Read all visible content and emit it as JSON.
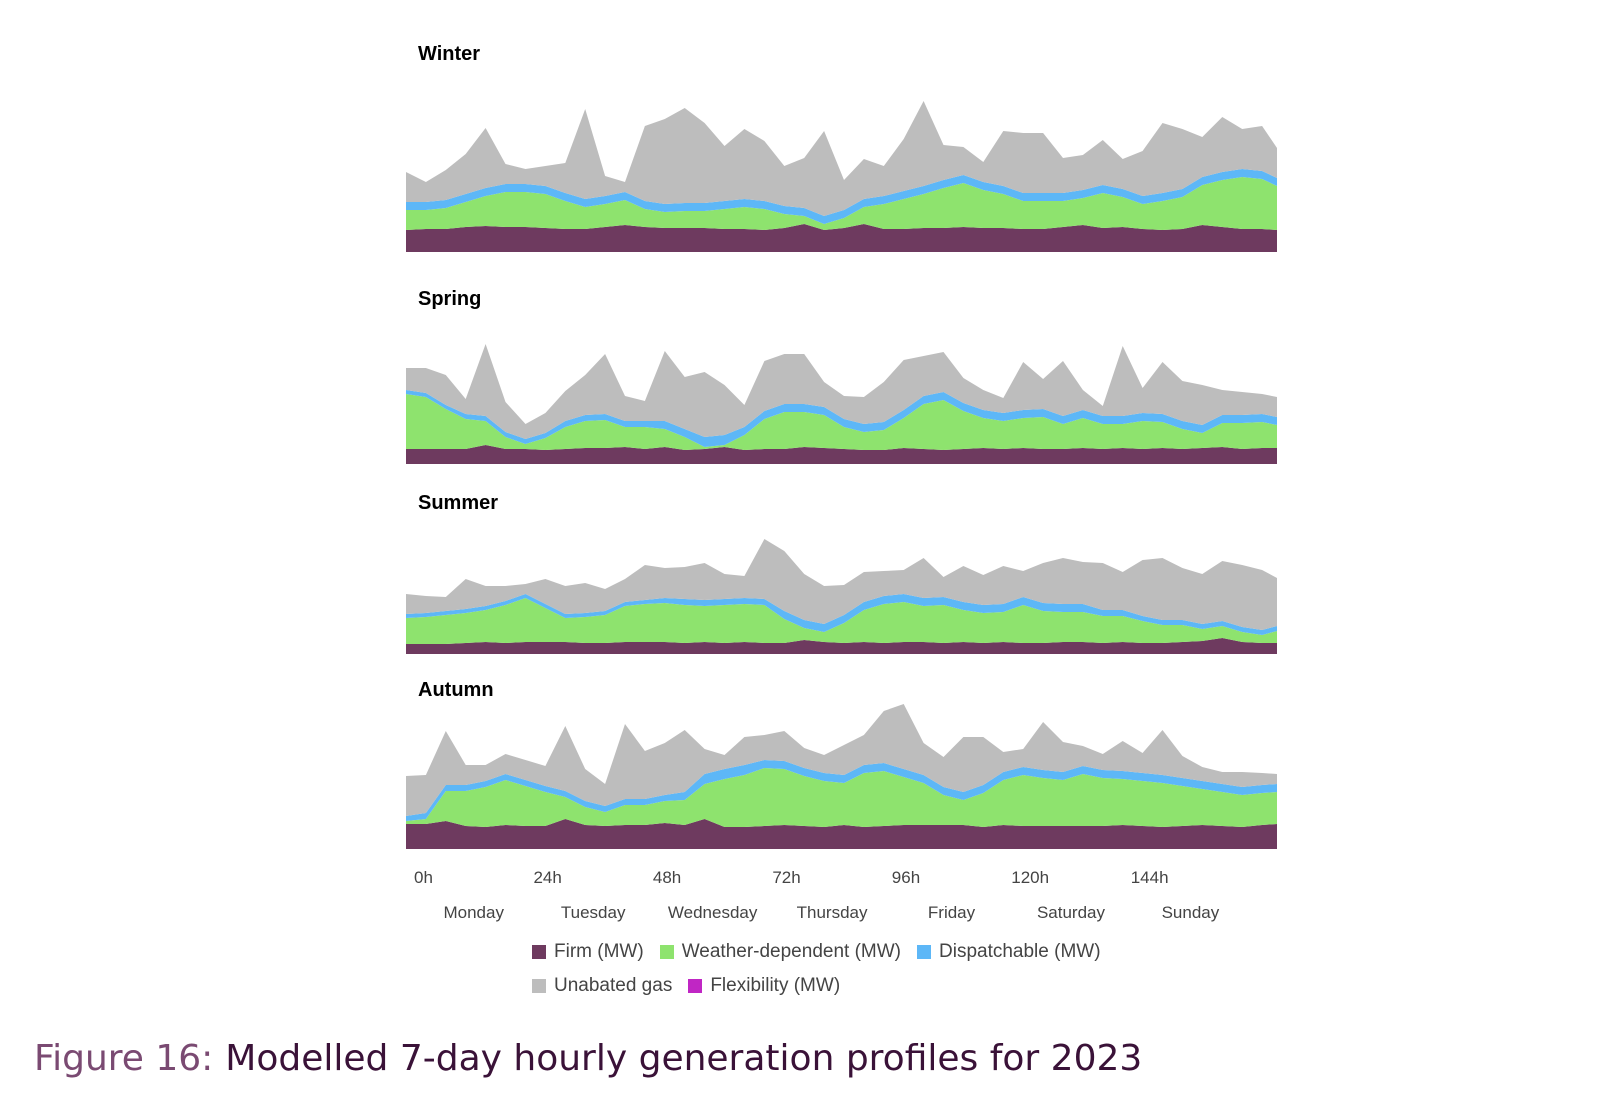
{
  "chart_data": {
    "type": "area",
    "stacked": true,
    "x_ticks": [
      "0h",
      "24h",
      "48h",
      "72h",
      "96h",
      "120h",
      "144h"
    ],
    "x_tick_hours": [
      0,
      24,
      48,
      72,
      96,
      120,
      144
    ],
    "x_range": [
      0,
      175
    ],
    "days": [
      "Monday",
      "Tuesday",
      "Wednesday",
      "Thursday",
      "Friday",
      "Saturday",
      "Sunday"
    ],
    "legend": [
      {
        "name": "Firm (MW)",
        "color": "#6e3a5f"
      },
      {
        "name": "Weather-dependent (MW)",
        "color": "#8ee36e"
      },
      {
        "name": "Dispatchable (MW)",
        "color": "#5db7f7"
      },
      {
        "name": "Unabated gas",
        "color": "#bdbdbd"
      },
      {
        "name": "Flexibility (MW)",
        "color": "#c026c4"
      }
    ],
    "series_order": [
      "Firm (MW)",
      "Weather-dependent (MW)",
      "Dispatchable (MW)",
      "Unabated gas"
    ],
    "panels": [
      {
        "title": "Winter",
        "hours": [
          0,
          4,
          8,
          12,
          16,
          20,
          24,
          28,
          32,
          36,
          40,
          44,
          48,
          52,
          56,
          60,
          64,
          68,
          72,
          76,
          80,
          84,
          88,
          92,
          96,
          100,
          104,
          108,
          112,
          116,
          120,
          124,
          128,
          132,
          136,
          140,
          144,
          148,
          152,
          156,
          160,
          164,
          168,
          172,
          175
        ],
        "firm": [
          22,
          23,
          23,
          25,
          26,
          25,
          25,
          24,
          23,
          23,
          25,
          27,
          25,
          24,
          24,
          24,
          23,
          23,
          22,
          24,
          28,
          22,
          24,
          28,
          23,
          23,
          24,
          24,
          25,
          24,
          24,
          23,
          23,
          25,
          27,
          24,
          25,
          23,
          22,
          23,
          27,
          25,
          23,
          23,
          22
        ],
        "weather": [
          20,
          19,
          21,
          25,
          30,
          35,
          35,
          34,
          28,
          22,
          23,
          25,
          18,
          16,
          17,
          17,
          20,
          22,
          21,
          14,
          8,
          6,
          10,
          17,
          25,
          30,
          34,
          40,
          44,
          38,
          34,
          28,
          28,
          26,
          27,
          35,
          30,
          25,
          29,
          32,
          40,
          47,
          52,
          50,
          44
        ],
        "dispatchable": [
          8,
          8,
          8,
          8,
          8,
          8,
          8,
          8,
          8,
          8,
          8,
          8,
          8,
          8,
          8,
          8,
          8,
          8,
          8,
          8,
          8,
          8,
          8,
          8,
          8,
          8,
          8,
          8,
          8,
          8,
          8,
          8,
          8,
          8,
          8,
          8,
          8,
          8,
          8,
          8,
          8,
          8,
          8,
          8,
          8
        ],
        "gas": [
          30,
          20,
          30,
          40,
          60,
          20,
          15,
          20,
          30,
          90,
          20,
          10,
          75,
          85,
          95,
          80,
          55,
          70,
          60,
          40,
          50,
          85,
          30,
          40,
          30,
          52,
          85,
          35,
          28,
          20,
          55,
          60,
          60,
          35,
          35,
          45,
          30,
          45,
          70,
          60,
          40,
          55,
          40,
          45,
          30
        ]
      },
      {
        "title": "Spring",
        "hours": [
          0,
          4,
          8,
          12,
          16,
          20,
          24,
          28,
          32,
          36,
          40,
          44,
          48,
          52,
          56,
          60,
          64,
          68,
          72,
          76,
          80,
          84,
          88,
          92,
          96,
          100,
          104,
          108,
          112,
          116,
          120,
          124,
          128,
          132,
          136,
          140,
          144,
          148,
          152,
          156,
          160,
          164,
          168,
          172,
          175
        ],
        "firm": [
          15,
          15,
          15,
          15,
          19,
          15,
          15,
          14,
          15,
          16,
          16,
          17,
          15,
          17,
          14,
          15,
          17,
          14,
          15,
          15,
          17,
          16,
          15,
          14,
          14,
          16,
          15,
          14,
          15,
          16,
          15,
          16,
          15,
          15,
          16,
          15,
          16,
          15,
          16,
          15,
          16,
          17,
          15,
          16,
          16
        ],
        "weather": [
          55,
          52,
          40,
          30,
          24,
          12,
          5,
          12,
          22,
          27,
          28,
          20,
          22,
          18,
          13,
          2,
          2,
          15,
          30,
          37,
          35,
          33,
          22,
          18,
          20,
          30,
          45,
          50,
          38,
          30,
          28,
          30,
          32,
          25,
          30,
          25,
          24,
          28,
          26,
          20,
          15,
          24,
          26,
          26,
          23
        ],
        "dispatchable": [
          4,
          4,
          4,
          5,
          5,
          5,
          5,
          5,
          6,
          6,
          6,
          6,
          6,
          8,
          8,
          10,
          10,
          8,
          8,
          8,
          8,
          8,
          8,
          8,
          8,
          8,
          8,
          8,
          8,
          8,
          8,
          8,
          8,
          8,
          8,
          8,
          8,
          8,
          8,
          8,
          8,
          8,
          8,
          8,
          8
        ],
        "gas": [
          22,
          25,
          30,
          15,
          72,
          30,
          15,
          20,
          30,
          40,
          60,
          25,
          20,
          70,
          52,
          65,
          50,
          22,
          50,
          50,
          50,
          25,
          23,
          27,
          40,
          50,
          40,
          40,
          25,
          20,
          15,
          48,
          30,
          55,
          20,
          10,
          70,
          25,
          52,
          40,
          40,
          25,
          23,
          20,
          20
        ]
      },
      {
        "title": "Summer",
        "hours": [
          0,
          4,
          8,
          12,
          16,
          20,
          24,
          28,
          32,
          36,
          40,
          44,
          48,
          52,
          56,
          60,
          64,
          68,
          72,
          76,
          80,
          84,
          88,
          92,
          96,
          100,
          104,
          108,
          112,
          116,
          120,
          124,
          128,
          132,
          136,
          140,
          144,
          148,
          152,
          156,
          160,
          164,
          168,
          172,
          175
        ],
        "firm": [
          10,
          10,
          10,
          11,
          12,
          11,
          12,
          12,
          12,
          11,
          11,
          12,
          12,
          12,
          11,
          12,
          11,
          12,
          11,
          11,
          14,
          12,
          11,
          12,
          11,
          12,
          12,
          11,
          12,
          11,
          12,
          11,
          11,
          12,
          12,
          11,
          12,
          11,
          11,
          12,
          13,
          16,
          12,
          11,
          11
        ],
        "weather": [
          26,
          27,
          29,
          30,
          32,
          38,
          44,
          34,
          24,
          26,
          28,
          36,
          38,
          39,
          38,
          36,
          38,
          38,
          38,
          24,
          12,
          10,
          20,
          32,
          39,
          40,
          36,
          38,
          32,
          30,
          30,
          38,
          32,
          30,
          30,
          27,
          26,
          22,
          18,
          17,
          12,
          12,
          10,
          8,
          12
        ],
        "dispatchable": [
          4,
          4,
          4,
          4,
          4,
          4,
          4,
          4,
          4,
          4,
          4,
          4,
          4,
          5,
          6,
          6,
          6,
          6,
          6,
          8,
          8,
          8,
          8,
          8,
          8,
          8,
          8,
          8,
          8,
          8,
          8,
          8,
          8,
          8,
          8,
          6,
          6,
          5,
          5,
          5,
          5,
          5,
          5,
          5,
          5
        ],
        "gas": [
          20,
          17,
          14,
          30,
          20,
          15,
          10,
          25,
          28,
          30,
          22,
          23,
          35,
          30,
          32,
          37,
          25,
          22,
          60,
          60,
          46,
          38,
          30,
          30,
          25,
          24,
          40,
          20,
          36,
          30,
          38,
          26,
          40,
          46,
          42,
          47,
          38,
          56,
          62,
          52,
          50,
          60,
          62,
          60,
          48
        ]
      },
      {
        "title": "Autumn",
        "hours": [
          0,
          4,
          8,
          12,
          16,
          20,
          24,
          28,
          32,
          36,
          40,
          44,
          48,
          52,
          56,
          60,
          64,
          68,
          72,
          76,
          80,
          84,
          88,
          92,
          96,
          100,
          104,
          108,
          112,
          116,
          120,
          124,
          128,
          132,
          136,
          140,
          144,
          148,
          152,
          156,
          160,
          164,
          168,
          172,
          175
        ],
        "firm": [
          25,
          25,
          28,
          23,
          22,
          24,
          23,
          23,
          30,
          24,
          23,
          24,
          24,
          26,
          24,
          30,
          22,
          22,
          23,
          24,
          23,
          22,
          24,
          22,
          23,
          24,
          24,
          24,
          24,
          22,
          24,
          23,
          23,
          23,
          23,
          23,
          24,
          23,
          22,
          23,
          24,
          23,
          22,
          24,
          25
        ],
        "weather": [
          3,
          5,
          30,
          35,
          40,
          45,
          40,
          34,
          22,
          18,
          14,
          20,
          20,
          22,
          25,
          35,
          48,
          52,
          58,
          56,
          50,
          46,
          42,
          54,
          55,
          48,
          42,
          30,
          25,
          34,
          45,
          51,
          48,
          46,
          52,
          48,
          46,
          45,
          44,
          40,
          36,
          34,
          32,
          32,
          32
        ],
        "dispatchable": [
          5,
          6,
          6,
          6,
          6,
          6,
          6,
          6,
          6,
          6,
          6,
          6,
          6,
          6,
          8,
          10,
          10,
          10,
          8,
          8,
          8,
          8,
          8,
          8,
          8,
          8,
          8,
          8,
          8,
          8,
          8,
          8,
          8,
          8,
          8,
          8,
          8,
          8,
          8,
          8,
          8,
          8,
          8,
          8,
          8
        ],
        "gas": [
          40,
          38,
          54,
          20,
          16,
          20,
          20,
          20,
          65,
          32,
          22,
          75,
          48,
          52,
          62,
          25,
          14,
          28,
          25,
          30,
          20,
          18,
          30,
          30,
          52,
          65,
          32,
          30,
          55,
          48,
          20,
          18,
          48,
          30,
          20,
          16,
          30,
          20,
          45,
          22,
          14,
          12,
          15,
          12,
          10
        ]
      }
    ]
  },
  "caption": {
    "number": "Figure 16:",
    "text": "Modelled 7-day hourly generation profiles for 2023"
  }
}
